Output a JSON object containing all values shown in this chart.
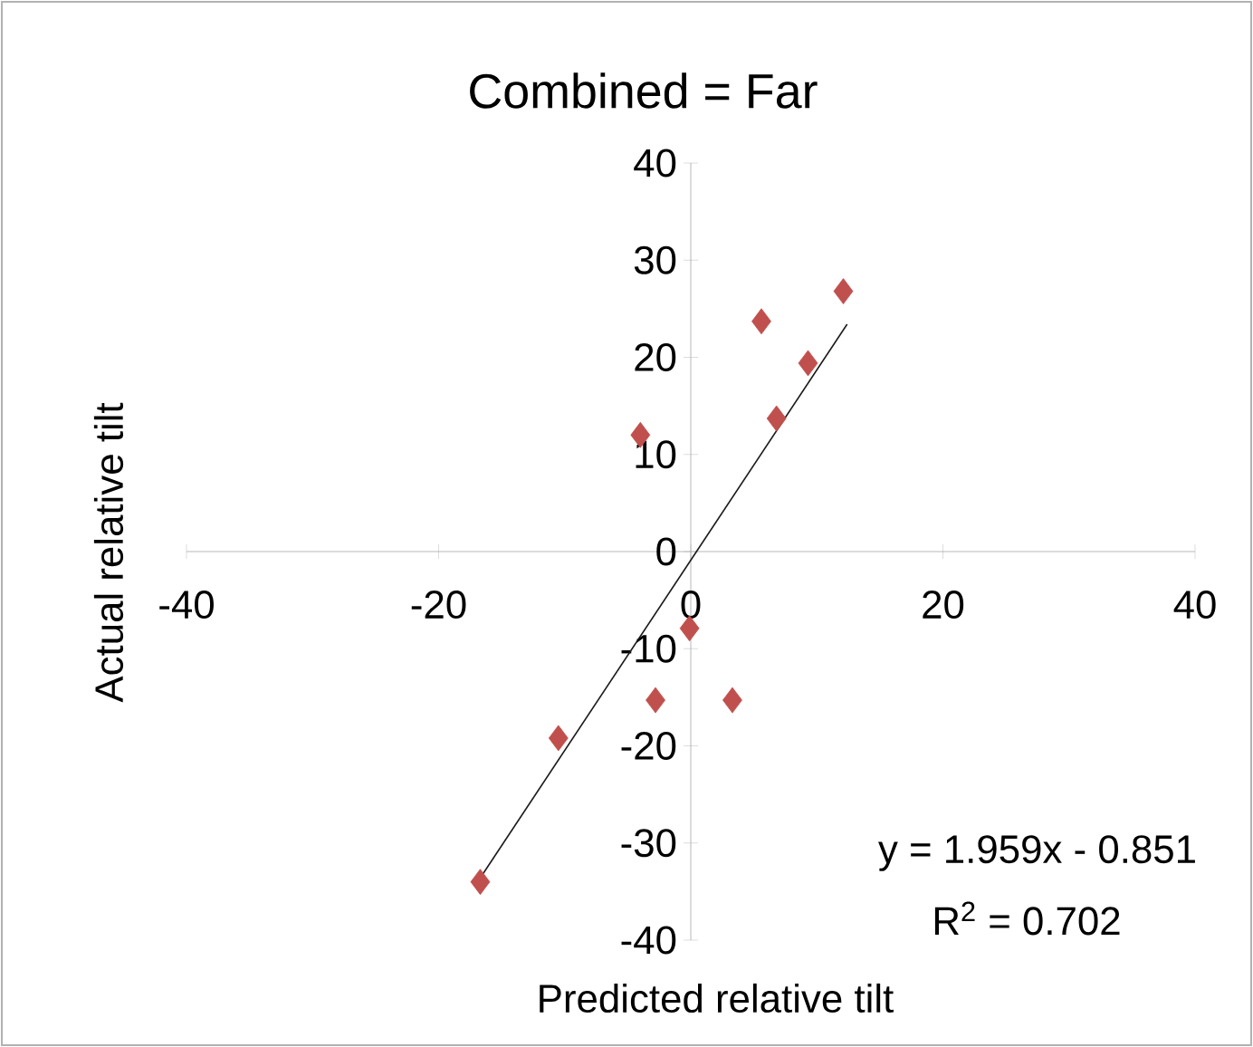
{
  "chart_data": {
    "type": "scatter",
    "title": "Combined = Far",
    "xlabel": "Predicted relative tilt",
    "ylabel": "Actual relative tilt",
    "xlim": [
      -40,
      40
    ],
    "ylim": [
      -40,
      40
    ],
    "xticks": [
      -40,
      -20,
      0,
      20,
      40
    ],
    "yticks": [
      -40,
      -30,
      -20,
      -10,
      0,
      10,
      20,
      30,
      40
    ],
    "grid": false,
    "series": [
      {
        "color": "#c0504d",
        "marker": "diamond",
        "x": [
          12.1,
          5.6,
          9.3,
          6.8,
          -4.0,
          -0.1,
          -2.8,
          3.3,
          -10.5,
          -16.7
        ],
        "values": [
          26.8,
          23.7,
          19.4,
          13.7,
          12.0,
          -7.9,
          -15.3,
          -15.3,
          -19.2,
          -34.0
        ]
      },
      {
        "type": "line",
        "color": "#1a1a1a",
        "marker": "none",
        "line_style": "solid",
        "x": [
          -16.6,
          12.4
        ],
        "values": [
          -33.4,
          23.4
        ]
      }
    ],
    "annotations": [
      "y = 1.959x - 0.851",
      "R$^{2}$ = 0.702"
    ]
  }
}
